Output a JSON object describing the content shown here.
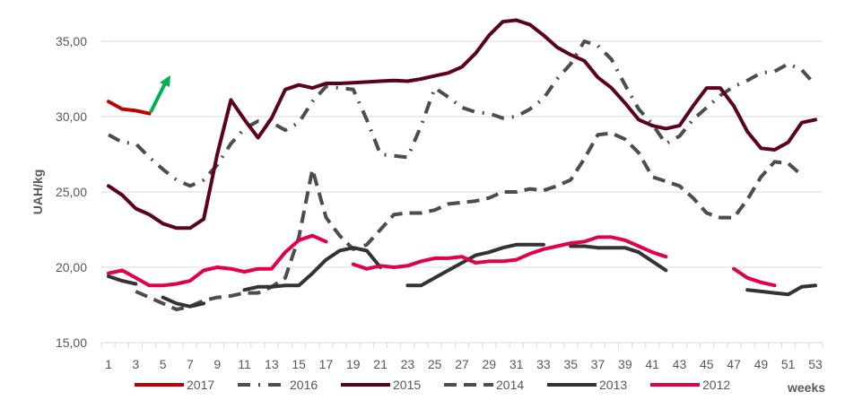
{
  "chart_data": {
    "type": "line",
    "title": "",
    "xlabel": "weeks",
    "ylabel": "UAH/kg",
    "ylim": [
      15,
      35
    ],
    "yticks": [
      "15,00",
      "20,00",
      "25,00",
      "30,00",
      "35,00"
    ],
    "ytick_values": [
      15,
      20,
      25,
      30,
      35
    ],
    "xlim": [
      1,
      53
    ],
    "xticks": [
      "1",
      "3",
      "5",
      "7",
      "9",
      "11",
      "13",
      "15",
      "17",
      "19",
      "21",
      "23",
      "25",
      "27",
      "29",
      "31",
      "33",
      "35",
      "37",
      "39",
      "41",
      "43",
      "45",
      "47",
      "49",
      "51",
      "53"
    ],
    "grid": true,
    "legend_position": "bottom",
    "annotation": "green-up-arrow",
    "series": [
      {
        "name": "2017",
        "color": "#C00000",
        "dash": "solid",
        "values": [
          31.0,
          30.5,
          30.4,
          30.2
        ]
      },
      {
        "name": "2016",
        "color": "#4D4D4D",
        "dash": "dashdot",
        "values": [
          28.8,
          28.3,
          28.2,
          27.3,
          26.5,
          25.8,
          25.4,
          25.8,
          26.8,
          28.2,
          29.2,
          29.7,
          29.6,
          29.1,
          29.6,
          31.0,
          32.0,
          31.9,
          31.8,
          29.8,
          27.5,
          27.4,
          27.3,
          29.4,
          31.9,
          31.3,
          30.6,
          30.3,
          30.2,
          29.9,
          30.0,
          30.5,
          31.2,
          32.5,
          33.5,
          35.0,
          34.7,
          33.8,
          32.1,
          30.5,
          29.5,
          28.2,
          28.7,
          29.8,
          30.6,
          31.4,
          32.0,
          32.4,
          32.9,
          33.0,
          33.5,
          33.1,
          32.1
        ]
      },
      {
        "name": "2015",
        "color": "#5C0020",
        "dash": "solid",
        "values": [
          25.4,
          24.8,
          23.9,
          23.5,
          22.9,
          22.6,
          22.6,
          23.2,
          27.5,
          31.1,
          29.8,
          28.6,
          29.9,
          31.8,
          32.1,
          31.9,
          32.2,
          32.2,
          32.25,
          32.3,
          32.35,
          32.4,
          32.35,
          32.5,
          32.7,
          32.9,
          33.3,
          34.2,
          35.4,
          36.3,
          36.4,
          36.1,
          35.4,
          34.6,
          34.1,
          33.7,
          32.6,
          31.9,
          30.9,
          29.8,
          29.4,
          29.2,
          29.4,
          30.7,
          31.9,
          31.9,
          30.7,
          29.0,
          27.9,
          27.8,
          28.3,
          29.6,
          29.8
        ]
      },
      {
        "name": "2014",
        "color": "#4D4D4D",
        "dash": "dashed",
        "values": [
          null,
          null,
          18.4,
          18.0,
          17.6,
          17.2,
          17.4,
          17.8,
          18.0,
          18.1,
          18.3,
          18.3,
          18.7,
          19.3,
          22.0,
          26.5,
          23.3,
          22.1,
          21.2,
          21.5,
          22.5,
          23.5,
          23.6,
          23.6,
          23.8,
          24.2,
          24.3,
          24.4,
          24.6,
          25.0,
          25.0,
          25.2,
          25.1,
          25.4,
          25.8,
          27.2,
          28.8,
          28.9,
          28.5,
          27.6,
          26.0,
          25.7,
          25.4,
          24.6,
          23.6,
          23.3,
          23.3,
          24.5,
          26.0,
          27.0,
          26.9,
          26.1,
          null
        ]
      },
      {
        "name": "2013",
        "color": "#333333",
        "dash": "solid",
        "values": [
          19.4,
          19.1,
          18.9,
          null,
          18.0,
          17.6,
          17.4,
          17.6,
          null,
          null,
          18.5,
          18.7,
          18.7,
          18.8,
          18.8,
          19.6,
          20.5,
          21.1,
          21.3,
          21.1,
          20.0,
          null,
          18.8,
          18.8,
          19.3,
          19.8,
          20.3,
          20.8,
          21.0,
          21.3,
          21.5,
          21.5,
          21.5,
          null,
          21.4,
          21.4,
          21.3,
          21.3,
          21.3,
          21.0,
          20.4,
          19.8,
          null,
          null,
          null,
          null,
          null,
          18.5,
          18.4,
          18.3,
          18.2,
          18.7,
          18.8
        ]
      },
      {
        "name": "2012",
        "color": "#E0004D",
        "dash": "solid",
        "values": [
          19.6,
          19.8,
          19.3,
          18.8,
          18.8,
          18.9,
          19.1,
          19.8,
          20.0,
          19.9,
          19.7,
          19.9,
          19.9,
          21.0,
          21.8,
          22.1,
          21.7,
          null,
          20.2,
          19.9,
          20.1,
          20.0,
          20.1,
          20.4,
          20.6,
          20.6,
          20.7,
          20.3,
          20.4,
          20.4,
          20.5,
          20.9,
          21.2,
          21.4,
          21.6,
          21.7,
          22.0,
          22.0,
          21.8,
          21.4,
          21.0,
          20.7,
          null,
          null,
          null,
          null,
          19.9,
          19.3,
          19.0,
          18.8,
          null,
          null,
          null
        ]
      }
    ]
  }
}
